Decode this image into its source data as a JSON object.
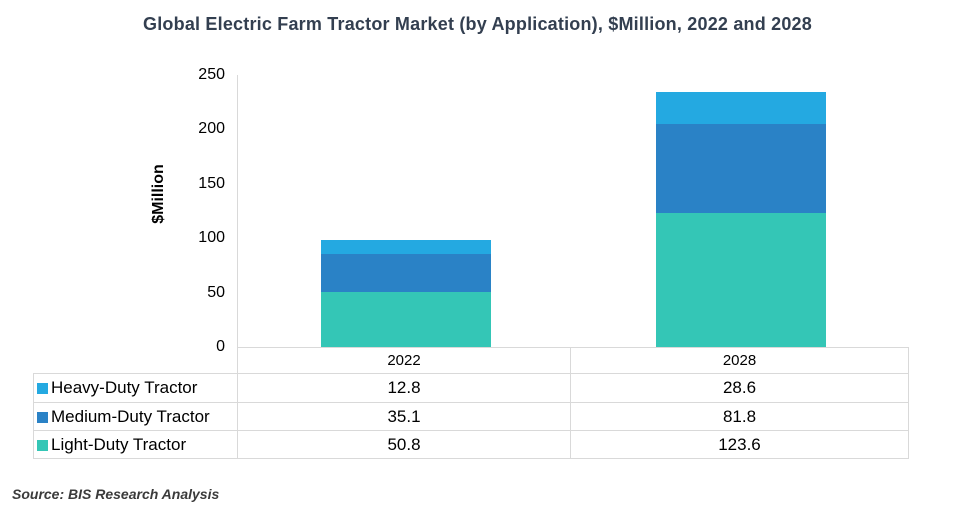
{
  "title": "Global Electric Farm Tractor Market (by Application), $Million, 2022 and 2028",
  "source": "Source: BIS Research Analysis",
  "chart_data": {
    "type": "bar",
    "stacked": true,
    "title": "Global Electric Farm Tractor Market (by Application), $Million, 2022 and 2028",
    "categories": [
      "2022",
      "2028"
    ],
    "series": [
      {
        "name": "Heavy-Duty Tractor",
        "color": "#24A9E1",
        "values": [
          12.8,
          28.6
        ]
      },
      {
        "name": "Medium-Duty Tractor",
        "color": "#2A82C6",
        "values": [
          35.1,
          81.8
        ]
      },
      {
        "name": "Light-Duty Tractor",
        "color": "#34C6B6",
        "values": [
          50.8,
          123.6
        ]
      }
    ],
    "xlabel": "",
    "ylabel": "$Million",
    "ylim": [
      0,
      250
    ],
    "yticks": [
      0,
      50,
      100,
      150,
      200,
      250
    ],
    "grid": false,
    "legend_position": "table-below",
    "axis_line_color": "#D9D9D9",
    "title_color": "#333F50"
  }
}
